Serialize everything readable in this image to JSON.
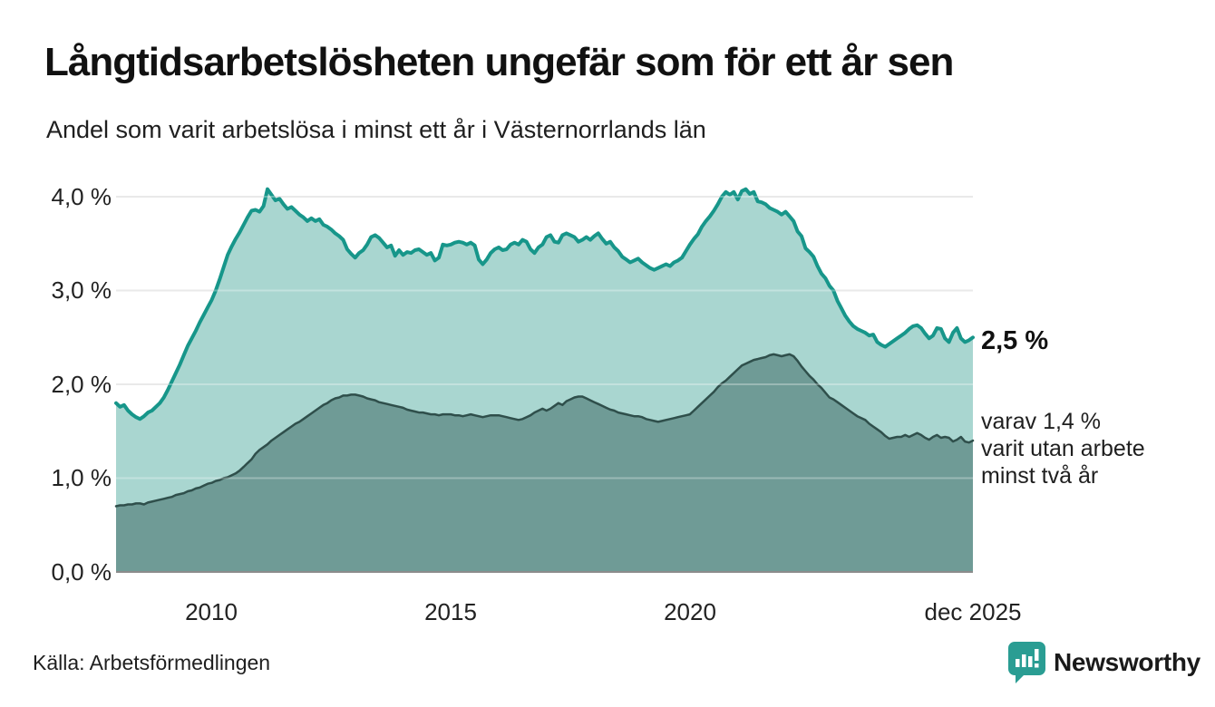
{
  "header": {
    "title": "Långtidsarbetslösheten ungefär som för ett år sen",
    "subtitle": "Andel som varit arbetslösa i minst ett år i Västernorrlands län"
  },
  "chart_data": {
    "type": "area",
    "title": "Långtidsarbetslösheten ungefär som för ett år sen",
    "subtitle": "Andel som varit arbetslösa i minst ett år i Västernorrlands län",
    "x_start": "2008-01",
    "x_end": "2025-12",
    "interval": "monthly",
    "xlabel": "",
    "ylabel": "",
    "ylim": [
      0,
      4.3
    ],
    "grid": true,
    "legend_position": "none",
    "y_tick_labels": [
      "4,0 %",
      "3,0 %",
      "2,0 %",
      "1,0 %",
      "0,0 %"
    ],
    "y_tick_values": [
      4,
      3,
      2,
      1,
      0
    ],
    "x_tick_labels": [
      "2010",
      "2015",
      "2020",
      "dec 2025"
    ],
    "series": [
      {
        "name": "Andel arbetslösa minst ett år",
        "stroke": "#17968a",
        "fill": "#a9d6d0",
        "stroke_width": 4,
        "values": [
          1.8,
          1.76,
          1.78,
          1.72,
          1.68,
          1.65,
          1.63,
          1.66,
          1.7,
          1.72,
          1.76,
          1.8,
          1.86,
          1.94,
          2.03,
          2.12,
          2.21,
          2.31,
          2.41,
          2.49,
          2.57,
          2.66,
          2.74,
          2.82,
          2.9,
          3.0,
          3.12,
          3.25,
          3.38,
          3.47,
          3.55,
          3.62,
          3.7,
          3.78,
          3.85,
          3.86,
          3.84,
          3.9,
          4.08,
          4.02,
          3.96,
          3.98,
          3.92,
          3.87,
          3.89,
          3.85,
          3.81,
          3.78,
          3.74,
          3.77,
          3.74,
          3.76,
          3.7,
          3.68,
          3.65,
          3.61,
          3.58,
          3.54,
          3.44,
          3.39,
          3.35,
          3.4,
          3.43,
          3.49,
          3.57,
          3.59,
          3.56,
          3.51,
          3.46,
          3.48,
          3.37,
          3.43,
          3.38,
          3.41,
          3.4,
          3.43,
          3.44,
          3.41,
          3.38,
          3.4,
          3.32,
          3.35,
          3.49,
          3.48,
          3.49,
          3.51,
          3.52,
          3.51,
          3.49,
          3.51,
          3.48,
          3.33,
          3.28,
          3.33,
          3.4,
          3.44,
          3.46,
          3.43,
          3.44,
          3.49,
          3.51,
          3.49,
          3.54,
          3.52,
          3.44,
          3.4,
          3.46,
          3.49,
          3.57,
          3.59,
          3.52,
          3.51,
          3.59,
          3.61,
          3.59,
          3.57,
          3.52,
          3.54,
          3.57,
          3.54,
          3.58,
          3.61,
          3.55,
          3.5,
          3.52,
          3.46,
          3.42,
          3.36,
          3.33,
          3.3,
          3.32,
          3.34,
          3.3,
          3.27,
          3.24,
          3.22,
          3.24,
          3.26,
          3.28,
          3.26,
          3.3,
          3.32,
          3.35,
          3.42,
          3.49,
          3.55,
          3.6,
          3.68,
          3.74,
          3.79,
          3.85,
          3.92,
          4.0,
          4.05,
          4.02,
          4.05,
          3.97,
          4.06,
          4.08,
          4.03,
          4.05,
          3.95,
          3.94,
          3.92,
          3.88,
          3.86,
          3.84,
          3.81,
          3.84,
          3.79,
          3.74,
          3.63,
          3.58,
          3.45,
          3.41,
          3.36,
          3.26,
          3.18,
          3.13,
          3.05,
          3.0,
          2.89,
          2.81,
          2.73,
          2.67,
          2.62,
          2.59,
          2.57,
          2.55,
          2.52,
          2.53,
          2.45,
          2.42,
          2.4,
          2.43,
          2.46,
          2.49,
          2.52,
          2.55,
          2.59,
          2.62,
          2.63,
          2.6,
          2.54,
          2.49,
          2.52,
          2.6,
          2.59,
          2.49,
          2.45,
          2.55,
          2.6,
          2.49,
          2.45,
          2.47,
          2.5
        ]
      },
      {
        "name": "Andel arbetslösa minst två år",
        "stroke": "#2f4f4b",
        "fill": "#6f9b96",
        "stroke_width": 2.5,
        "values": [
          0.7,
          0.71,
          0.71,
          0.72,
          0.72,
          0.73,
          0.73,
          0.72,
          0.74,
          0.75,
          0.76,
          0.77,
          0.78,
          0.79,
          0.8,
          0.82,
          0.83,
          0.84,
          0.86,
          0.87,
          0.89,
          0.9,
          0.92,
          0.94,
          0.95,
          0.97,
          0.98,
          1.0,
          1.01,
          1.03,
          1.05,
          1.08,
          1.12,
          1.16,
          1.2,
          1.26,
          1.3,
          1.33,
          1.36,
          1.4,
          1.43,
          1.46,
          1.49,
          1.52,
          1.55,
          1.58,
          1.6,
          1.63,
          1.66,
          1.69,
          1.72,
          1.75,
          1.78,
          1.8,
          1.83,
          1.85,
          1.86,
          1.88,
          1.88,
          1.89,
          1.89,
          1.88,
          1.87,
          1.85,
          1.84,
          1.83,
          1.81,
          1.8,
          1.79,
          1.78,
          1.77,
          1.76,
          1.75,
          1.73,
          1.72,
          1.71,
          1.7,
          1.7,
          1.69,
          1.68,
          1.68,
          1.67,
          1.68,
          1.68,
          1.68,
          1.67,
          1.67,
          1.66,
          1.67,
          1.68,
          1.67,
          1.66,
          1.65,
          1.66,
          1.67,
          1.67,
          1.67,
          1.66,
          1.65,
          1.64,
          1.63,
          1.62,
          1.63,
          1.65,
          1.67,
          1.7,
          1.72,
          1.74,
          1.72,
          1.74,
          1.77,
          1.8,
          1.78,
          1.82,
          1.84,
          1.86,
          1.87,
          1.87,
          1.85,
          1.83,
          1.81,
          1.79,
          1.77,
          1.75,
          1.73,
          1.72,
          1.7,
          1.69,
          1.68,
          1.67,
          1.66,
          1.66,
          1.65,
          1.63,
          1.62,
          1.61,
          1.6,
          1.61,
          1.62,
          1.63,
          1.64,
          1.65,
          1.66,
          1.67,
          1.68,
          1.72,
          1.76,
          1.8,
          1.84,
          1.88,
          1.92,
          1.97,
          2.01,
          2.04,
          2.08,
          2.12,
          2.16,
          2.2,
          2.22,
          2.24,
          2.26,
          2.27,
          2.28,
          2.29,
          2.31,
          2.32,
          2.31,
          2.3,
          2.31,
          2.32,
          2.3,
          2.25,
          2.19,
          2.14,
          2.09,
          2.05,
          2.0,
          1.96,
          1.91,
          1.86,
          1.84,
          1.81,
          1.78,
          1.75,
          1.72,
          1.69,
          1.66,
          1.64,
          1.62,
          1.58,
          1.55,
          1.52,
          1.49,
          1.45,
          1.42,
          1.43,
          1.44,
          1.44,
          1.46,
          1.44,
          1.46,
          1.48,
          1.46,
          1.43,
          1.41,
          1.44,
          1.46,
          1.43,
          1.44,
          1.43,
          1.39,
          1.41,
          1.44,
          1.39,
          1.38,
          1.4
        ]
      }
    ],
    "end_labels": {
      "primary": "2,5 %",
      "secondary_lines": [
        "varav 1,4 %",
        "varit utan arbete",
        "minst två år"
      ]
    },
    "colors": {
      "gridline": "#e0e0e0",
      "baseline": "#8c8c8c",
      "series1_stroke": "#17968a",
      "series1_fill": "#a9d6d0",
      "series2_stroke": "#2f4f4b",
      "series2_fill": "#6f9b96"
    }
  },
  "footer": {
    "source": "Källa: Arbetsförmedlingen",
    "brand": "Newsworthy",
    "brand_color": "#2a9d93"
  }
}
